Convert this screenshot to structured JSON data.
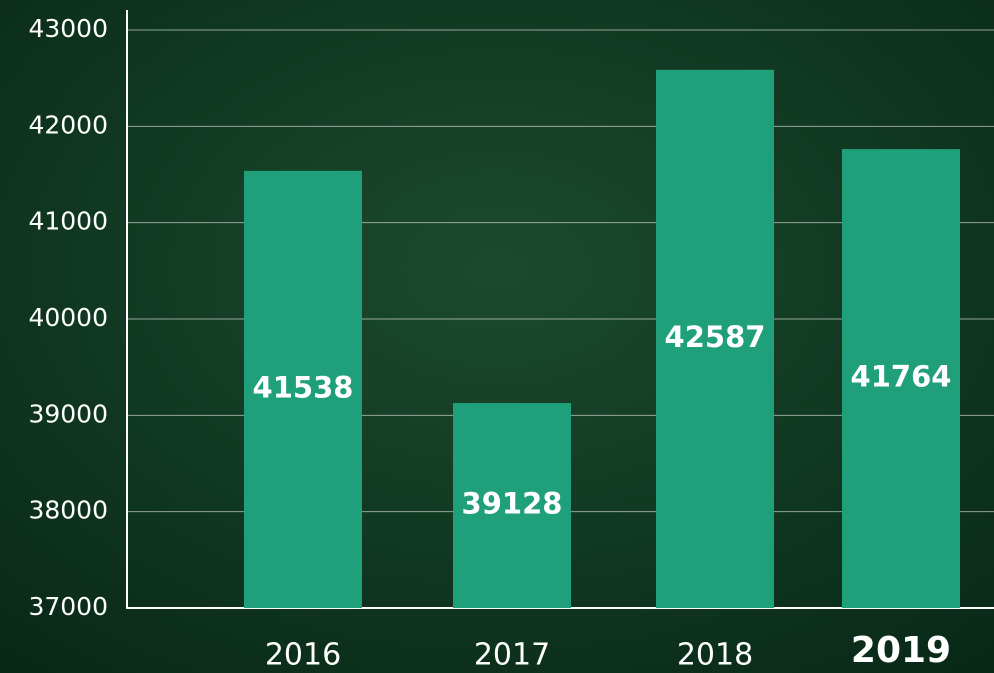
{
  "chart_data": {
    "type": "bar",
    "categories": [
      "2016",
      "2017",
      "2018",
      "2019"
    ],
    "values": [
      41538,
      39128,
      42587,
      41764
    ],
    "color": "#1fa07a",
    "ylim": [
      37000,
      43000
    ],
    "yticks": [
      37000,
      38000,
      39000,
      40000,
      41000,
      42000,
      43000
    ],
    "grid": true
  }
}
